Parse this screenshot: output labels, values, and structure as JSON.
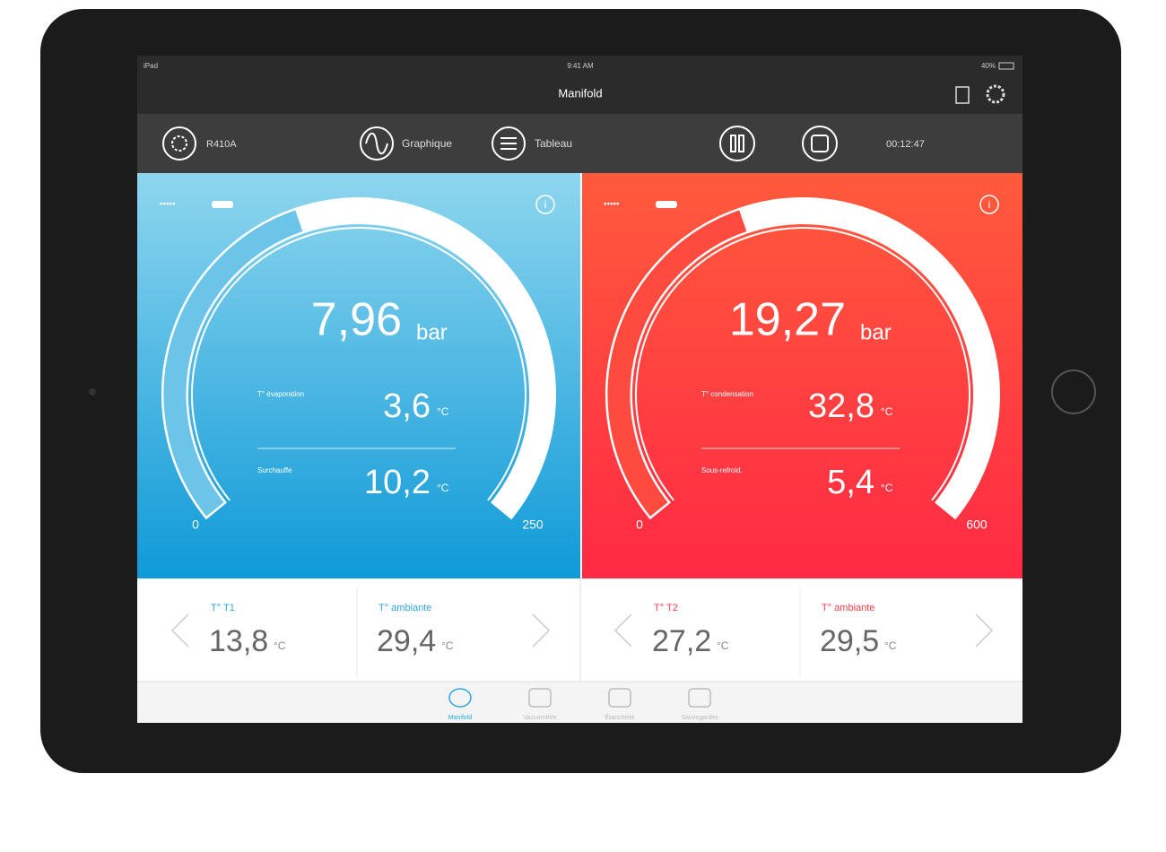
{
  "status_bar": {
    "carrier": "iPad",
    "time": "9:41 AM",
    "battery": "40%"
  },
  "nav_bar": {
    "title": "Manifold"
  },
  "toolbar": {
    "refrigerant": "R410A",
    "graph": "Graphique",
    "table": "Tableau",
    "timer": "00:12:47"
  },
  "gauges": [
    {
      "pressure": "7,96",
      "pressure_unit": "bar",
      "scale_min": "0",
      "scale_max": "250",
      "readings": [
        {
          "label": "T° évaporation",
          "value": "3,6",
          "unit": "°C"
        },
        {
          "label": "Surchauffe",
          "value": "10,2",
          "unit": "°C"
        }
      ]
    },
    {
      "pressure": "19,27",
      "pressure_unit": "bar",
      "scale_min": "0",
      "scale_max": "600",
      "readings": [
        {
          "label": "T° condensation",
          "value": "32,8",
          "unit": "°C"
        },
        {
          "label": "Sous-refroid.",
          "value": "5,4",
          "unit": "°C"
        }
      ]
    }
  ],
  "sensors": [
    [
      {
        "label": "T° T1",
        "value": "13,8",
        "unit": "°C"
      },
      {
        "label": "T° ambiante",
        "value": "29,4",
        "unit": "°C"
      }
    ],
    [
      {
        "label": "T° T2",
        "value": "27,2",
        "unit": "°C"
      },
      {
        "label": "T° ambiante",
        "value": "29,5",
        "unit": "°C"
      }
    ]
  ],
  "tab_bar": {
    "tabs": [
      "Manifold",
      "Vacuomètre",
      "Étanchéité",
      "Sauvegardes"
    ]
  }
}
